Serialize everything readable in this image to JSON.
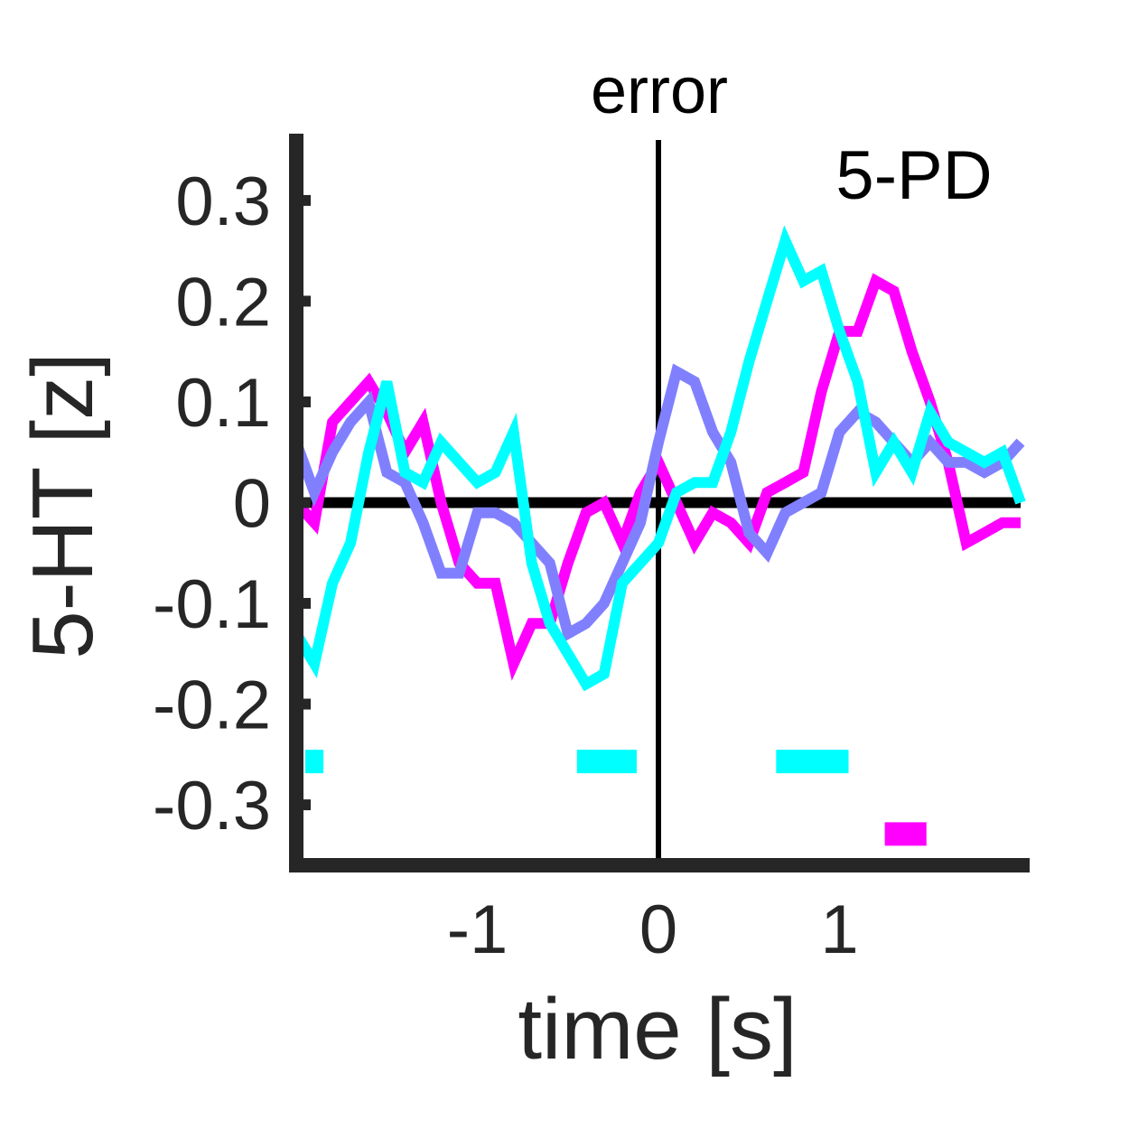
{
  "chart_data": {
    "type": "line",
    "title": "error",
    "annotation": "5-PD",
    "xlabel": "time [s]",
    "ylabel": "5-HT [z]",
    "xlim": [
      -2,
      2
    ],
    "ylim": [
      -0.36,
      0.36
    ],
    "xticks": [
      -1,
      0,
      1
    ],
    "xtick_labels": [
      "-1",
      "0",
      "1"
    ],
    "yticks": [
      0.3,
      0.2,
      0.1,
      0,
      -0.1,
      -0.2,
      -0.3
    ],
    "ytick_labels": [
      "0.3",
      "0.2",
      "0.1",
      "0",
      "-0.1",
      "-0.2",
      "-0.3"
    ],
    "grid": false,
    "reference_lines": {
      "y": 0,
      "x": 0
    },
    "colors": {
      "axis": "#262626",
      "reference": "#000000"
    },
    "series": [
      {
        "color": "#FF00FF",
        "x": [
          -2.0,
          -1.9,
          -1.8,
          -1.7,
          -1.6,
          -1.5,
          -1.4,
          -1.3,
          -1.2,
          -1.1,
          -1.0,
          -0.9,
          -0.8,
          -0.7,
          -0.6,
          -0.5,
          -0.4,
          -0.3,
          -0.2,
          -0.1,
          0.0,
          0.1,
          0.2,
          0.3,
          0.4,
          0.5,
          0.6,
          0.7,
          0.8,
          0.9,
          1.0,
          1.1,
          1.2,
          1.3,
          1.4,
          1.5,
          1.6,
          1.7,
          1.8,
          1.9,
          2.0
        ],
        "y": [
          0.0,
          -0.02,
          0.08,
          0.1,
          0.12,
          0.09,
          0.05,
          0.08,
          0.0,
          -0.06,
          -0.08,
          -0.08,
          -0.16,
          -0.12,
          -0.12,
          -0.06,
          -0.01,
          0.0,
          -0.04,
          0.01,
          0.04,
          0.0,
          -0.04,
          -0.01,
          -0.02,
          -0.04,
          0.01,
          0.02,
          0.03,
          0.11,
          0.17,
          0.17,
          0.22,
          0.21,
          0.15,
          0.1,
          0.04,
          -0.04,
          -0.03,
          -0.02,
          -0.02
        ]
      },
      {
        "color": "#8080FF",
        "x": [
          -2.0,
          -1.9,
          -1.8,
          -1.7,
          -1.6,
          -1.5,
          -1.4,
          -1.3,
          -1.2,
          -1.1,
          -1.0,
          -0.9,
          -0.8,
          -0.7,
          -0.6,
          -0.5,
          -0.4,
          -0.3,
          -0.2,
          -0.1,
          0.0,
          0.1,
          0.2,
          0.3,
          0.4,
          0.5,
          0.6,
          0.7,
          0.8,
          0.9,
          1.0,
          1.1,
          1.2,
          1.3,
          1.4,
          1.5,
          1.6,
          1.7,
          1.8,
          1.9,
          2.0
        ],
        "y": [
          0.06,
          0.01,
          0.05,
          0.08,
          0.1,
          0.03,
          0.02,
          -0.02,
          -0.07,
          -0.07,
          -0.01,
          -0.01,
          -0.02,
          -0.04,
          -0.06,
          -0.13,
          -0.12,
          -0.1,
          -0.06,
          -0.02,
          0.06,
          0.13,
          0.12,
          0.07,
          0.04,
          -0.03,
          -0.05,
          -0.01,
          0.0,
          0.01,
          0.07,
          0.09,
          0.08,
          0.06,
          0.04,
          0.06,
          0.04,
          0.04,
          0.03,
          0.04,
          0.06
        ]
      },
      {
        "color": "#00FFFF",
        "x": [
          -2.0,
          -1.9,
          -1.8,
          -1.7,
          -1.6,
          -1.5,
          -1.4,
          -1.3,
          -1.2,
          -1.1,
          -1.0,
          -0.9,
          -0.8,
          -0.7,
          -0.6,
          -0.5,
          -0.4,
          -0.3,
          -0.2,
          -0.1,
          0.0,
          0.1,
          0.2,
          0.3,
          0.4,
          0.5,
          0.6,
          0.7,
          0.8,
          0.9,
          1.0,
          1.1,
          1.2,
          1.3,
          1.4,
          1.5,
          1.6,
          1.7,
          1.8,
          1.9,
          2.0
        ],
        "y": [
          -0.13,
          -0.16,
          -0.08,
          -0.04,
          0.05,
          0.12,
          0.03,
          0.02,
          0.06,
          0.04,
          0.02,
          0.03,
          0.07,
          -0.06,
          -0.12,
          -0.15,
          -0.18,
          -0.17,
          -0.08,
          -0.06,
          -0.04,
          0.01,
          0.02,
          0.02,
          0.07,
          0.14,
          0.2,
          0.26,
          0.22,
          0.23,
          0.17,
          0.12,
          0.03,
          0.06,
          0.03,
          0.09,
          0.06,
          0.05,
          0.04,
          0.05,
          0.0
        ]
      }
    ],
    "significance_bars": [
      {
        "color": "#00FFFF",
        "y": -0.257,
        "x_ranges": [
          [
            -1.95,
            -1.85
          ],
          [
            -0.45,
            -0.12
          ],
          [
            0.65,
            1.05
          ]
        ]
      },
      {
        "color": "#FF00FF",
        "y": -0.329,
        "x_ranges": [
          [
            1.25,
            1.48
          ]
        ]
      }
    ]
  }
}
